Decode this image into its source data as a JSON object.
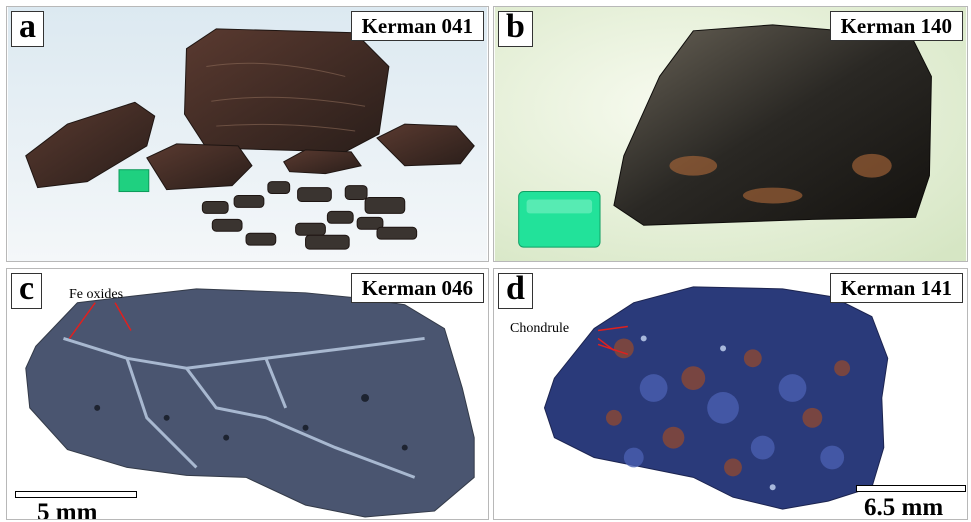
{
  "panels": {
    "a": {
      "letter": "a",
      "title": "Kerman 041"
    },
    "b": {
      "letter": "b",
      "title": "Kerman 140"
    },
    "c": {
      "letter": "c",
      "title": "Kerman 046",
      "annotation": "Fe oxides",
      "scale": "5 mm"
    },
    "d": {
      "letter": "d",
      "title": "Kerman 141",
      "annotation": "Chondrule",
      "scale": "6.5 mm"
    }
  },
  "colors": {
    "annotation_line": "#e0201e",
    "rock_dark": "#3a2a22",
    "cube_green": "#1fd080",
    "section_c": "#4a5570",
    "section_d": "#2a3a7a"
  }
}
